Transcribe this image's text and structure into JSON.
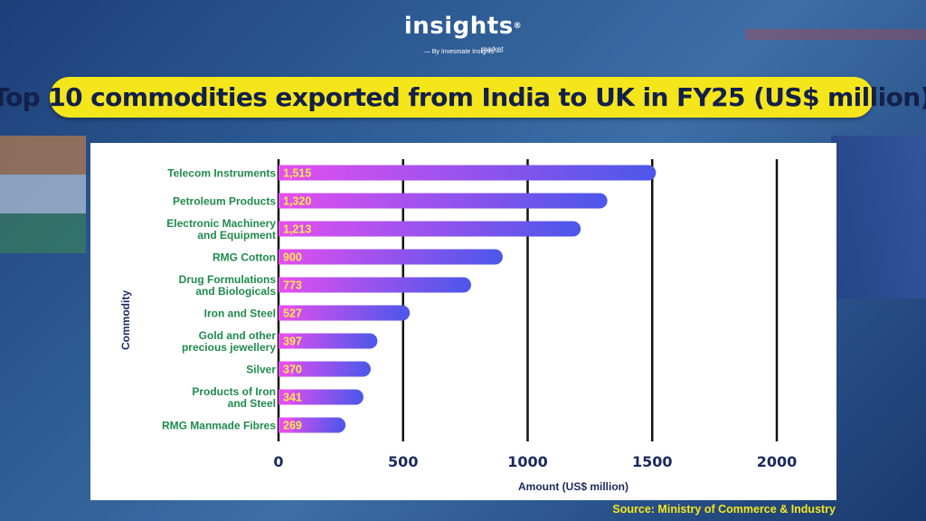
{
  "brand": {
    "logo_text": "insights",
    "logo_sub": "market",
    "logo_reg": "®",
    "byline": "By Invesmate Insights"
  },
  "title": "Top 10 commodities exported from India to UK in FY25 (US$ million)",
  "source": "Source: Ministry of Commerce & Industry",
  "colors": {
    "banner": "#f5e61c",
    "title_text": "#13204a",
    "bar_start": "#e24ff0",
    "bar_end": "#4b57ea",
    "label_green": "#1f8b4c",
    "value_yellow": "#ffe94a",
    "axis_navy": "#1b2a5e"
  },
  "chart_data": {
    "type": "bar",
    "orientation": "horizontal",
    "categories": [
      [
        "Telecom Instruments"
      ],
      [
        "Petroleum Products"
      ],
      [
        "Electronic Machinery",
        "and Equipment"
      ],
      [
        "RMG Cotton"
      ],
      [
        "Drug Formulations",
        "and Biologicals"
      ],
      [
        "Iron and Steel"
      ],
      [
        "Gold and other",
        "precious jewellery"
      ],
      [
        "Silver"
      ],
      [
        "Products of Iron",
        "and Steel"
      ],
      [
        "RMG Manmade Fibres"
      ]
    ],
    "values": [
      1515,
      1320,
      1213,
      900,
      773,
      527,
      397,
      370,
      341,
      269
    ],
    "value_labels": [
      "1,515",
      "1,320",
      "1,213",
      "900",
      "773",
      "527",
      "397",
      "370",
      "341",
      "269"
    ],
    "xlabel": "Amount (US$ million)",
    "ylabel": "Commodity",
    "xlim": [
      0,
      2000
    ],
    "xticks": [
      0,
      500,
      1000,
      1500,
      2000
    ],
    "grid": "vertical",
    "legend": "none"
  }
}
